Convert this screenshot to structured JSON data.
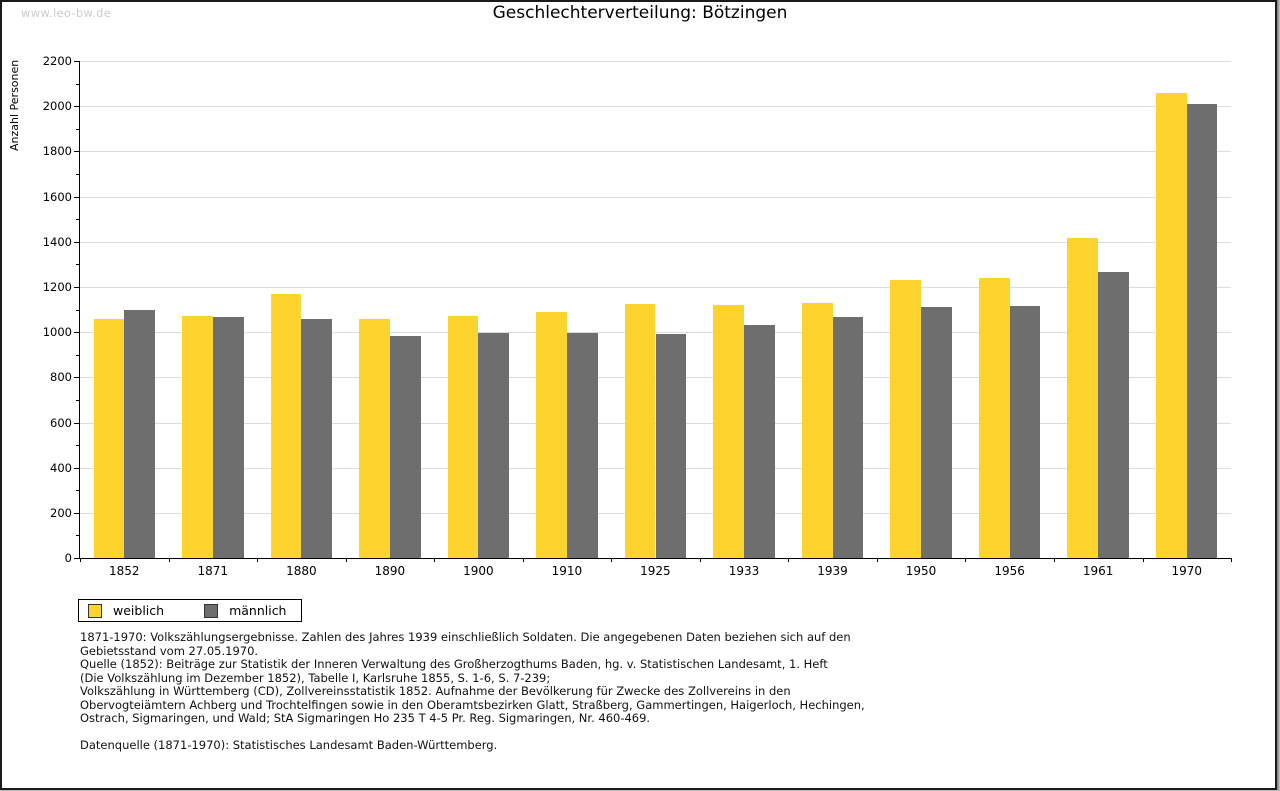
{
  "page": {
    "watermark": "www.leo-bw.de",
    "title": "Geschlechterverteilung: Bötzingen"
  },
  "chart_data": {
    "type": "bar",
    "title": "Geschlechterverteilung: Bötzingen",
    "xlabel": "",
    "ylabel": "Anzahl Personen",
    "categories": [
      "1852",
      "1871",
      "1880",
      "1890",
      "1900",
      "1910",
      "1925",
      "1933",
      "1939",
      "1950",
      "1956",
      "1961",
      "1970"
    ],
    "series": [
      {
        "name": "weiblich",
        "color": "#fcd42d",
        "values": [
          1060,
          1070,
          1170,
          1060,
          1070,
          1090,
          1125,
          1122,
          1130,
          1230,
          1240,
          1415,
          2058
        ]
      },
      {
        "name": "männlich",
        "color": "#6e6e6e",
        "values": [
          1100,
          1065,
          1060,
          982,
          995,
          996,
          990,
          1030,
          1065,
          1110,
          1115,
          1266,
          2012
        ]
      }
    ],
    "ylim": [
      0,
      2200
    ],
    "ytick_step": 200,
    "yminor_step": 100,
    "grid": true,
    "legend_position": "bottom-left"
  },
  "legend": {
    "items": [
      {
        "label": "weiblich",
        "color": "#fcd42d"
      },
      {
        "label": "männlich",
        "color": "#6e6e6e"
      }
    ]
  },
  "footer": {
    "lines": [
      "1871-1970: Volkszählungsergebnisse. Zahlen des Jahres 1939 einschließlich Soldaten. Die angegebenen Daten beziehen sich auf den",
      "Gebietsstand vom 27.05.1970.",
      "Quelle (1852): Beiträge zur Statistik der Inneren Verwaltung des Großherzogthums Baden, hg. v. Statistischen Landesamt, 1. Heft",
      "(Die Volkszählung im Dezember 1852), Tabelle I, Karlsruhe 1855, S. 1-6, S. 7-239;",
      "Volkszählung in Württemberg (CD), Zollvereinsstatistik 1852. Aufnahme der Bevölkerung für Zwecke des Zollvereins in den",
      "Obervogteiämtern Achberg und Trochtelfingen sowie in den Oberamtsbezirken Glatt, Straßberg, Gammertingen, Haigerloch, Hechingen,",
      "Ostrach, Sigmaringen, und Wald; StA Sigmaringen Ho 235 T 4-5 Pr. Reg. Sigmaringen, Nr. 460-469.",
      "",
      "Datenquelle (1871-1970): Statistisches Landesamt Baden-Württemberg."
    ]
  }
}
